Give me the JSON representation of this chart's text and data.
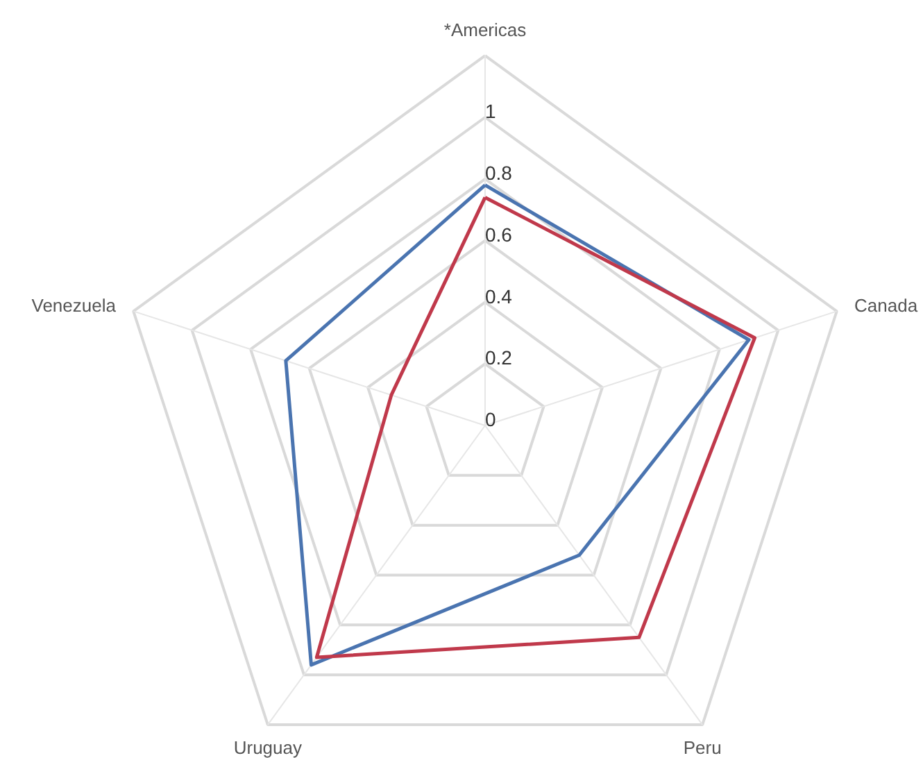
{
  "chart_data": {
    "type": "radar",
    "categories": [
      "*Americas",
      "Canada",
      "Peru",
      "Uruguay",
      "Venezuela"
    ],
    "series": [
      {
        "color": "#4a74b0",
        "values": [
          0.78,
          0.9,
          0.52,
          0.96,
          0.68
        ]
      },
      {
        "color": "#c0394b",
        "values": [
          0.74,
          0.92,
          0.85,
          0.93,
          0.32
        ]
      }
    ],
    "ylim": [
      0,
      1.2
    ],
    "yticks": [
      0,
      0.2,
      0.4,
      0.6,
      0.8,
      1
    ],
    "grid": true,
    "marker": "none",
    "line_style": "solid"
  }
}
